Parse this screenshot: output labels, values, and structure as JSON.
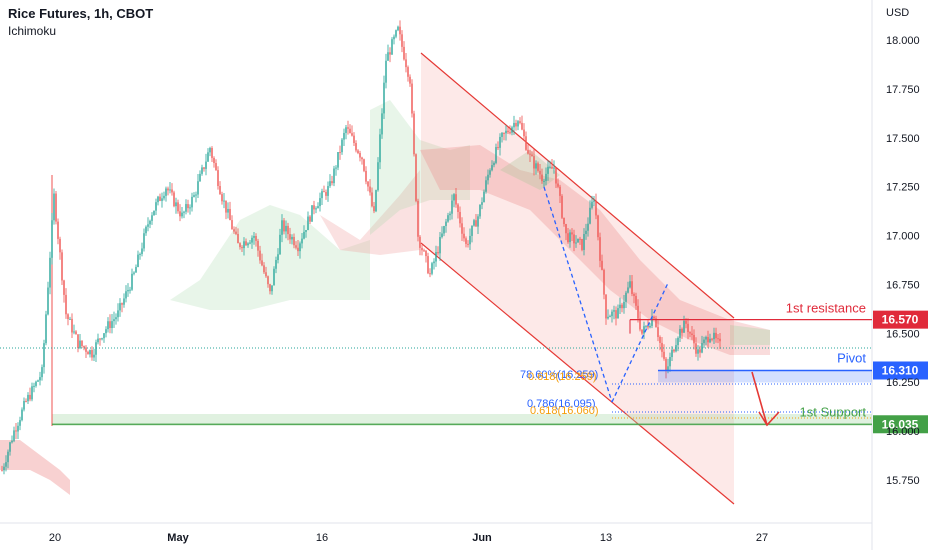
{
  "header": {
    "title": "Rice Futures, 1h, CBOT",
    "indicator": "Ichimoku"
  },
  "chart_data": {
    "type": "candlestick",
    "currency": "USD",
    "y_axis": {
      "ticks": [
        "18.000",
        "17.750",
        "17.500",
        "17.250",
        "17.000",
        "16.750",
        "16.500",
        "16.250",
        "16.000",
        "15.750"
      ],
      "tick_values": [
        18.0,
        17.75,
        17.5,
        17.25,
        17.0,
        16.75,
        16.5,
        16.25,
        16.0,
        15.75
      ],
      "range": [
        15.6,
        18.3
      ]
    },
    "x_axis": {
      "labels": [
        "20",
        "May",
        "16",
        "Jun",
        "13",
        "27"
      ],
      "bold": [
        false,
        true,
        false,
        true,
        false,
        false
      ]
    },
    "levels": {
      "resistance": {
        "label": "1st resistance",
        "value": 16.57,
        "value_label": "16.570",
        "color": "#e02a3a"
      },
      "pivot": {
        "label": "Pivot",
        "value": 16.31,
        "value_label": "16.310",
        "color": "#2962ff"
      },
      "support": {
        "label": "1st Support",
        "value": 16.035,
        "value_label": "16.035",
        "color": "#43a047"
      }
    },
    "fib_labels": {
      "upper_blue": "78.60%(16.259)",
      "upper_orange": "0.618(16.259)",
      "lower_blue": "0.786(16.095)",
      "lower_orange": "0.618(16.060)"
    },
    "colors": {
      "up": "#26a69a",
      "down": "#ef5350",
      "channel": "#e53935",
      "cloud_bull": "#a5d6a7",
      "cloud_bear": "#ef9a9a"
    },
    "price_path": [
      [
        0,
        15.8
      ],
      [
        6,
        16.0
      ],
      [
        12,
        16.15
      ],
      [
        20,
        16.3
      ],
      [
        26,
        17.2
      ],
      [
        32,
        16.6
      ],
      [
        38,
        16.45
      ],
      [
        45,
        16.4
      ],
      [
        50,
        16.5
      ],
      [
        58,
        16.6
      ],
      [
        66,
        16.8
      ],
      [
        74,
        17.1
      ],
      [
        82,
        17.25
      ],
      [
        90,
        17.1
      ],
      [
        96,
        17.2
      ],
      [
        104,
        17.45
      ],
      [
        110,
        17.2
      ],
      [
        118,
        16.95
      ],
      [
        126,
        17.0
      ],
      [
        134,
        16.7
      ],
      [
        140,
        17.05
      ],
      [
        148,
        16.95
      ],
      [
        156,
        17.15
      ],
      [
        164,
        17.25
      ],
      [
        172,
        17.55
      ],
      [
        180,
        17.4
      ],
      [
        186,
        17.1
      ],
      [
        192,
        17.9
      ],
      [
        198,
        18.05
      ],
      [
        204,
        17.8
      ],
      [
        208,
        17.0
      ],
      [
        214,
        16.8
      ],
      [
        220,
        17.0
      ],
      [
        226,
        17.2
      ],
      [
        232,
        16.95
      ],
      [
        238,
        17.1
      ],
      [
        244,
        17.35
      ],
      [
        250,
        17.5
      ],
      [
        258,
        17.6
      ],
      [
        264,
        17.4
      ],
      [
        270,
        17.3
      ],
      [
        276,
        17.35
      ],
      [
        282,
        17.0
      ],
      [
        290,
        16.95
      ],
      [
        296,
        17.2
      ],
      [
        302,
        16.6
      ],
      [
        308,
        16.6
      ],
      [
        314,
        16.75
      ],
      [
        320,
        16.5
      ],
      [
        326,
        16.6
      ],
      [
        332,
        16.3
      ],
      [
        338,
        16.5
      ],
      [
        342,
        16.55
      ],
      [
        348,
        16.4
      ],
      [
        354,
        16.5
      ],
      [
        360,
        16.42
      ]
    ]
  }
}
